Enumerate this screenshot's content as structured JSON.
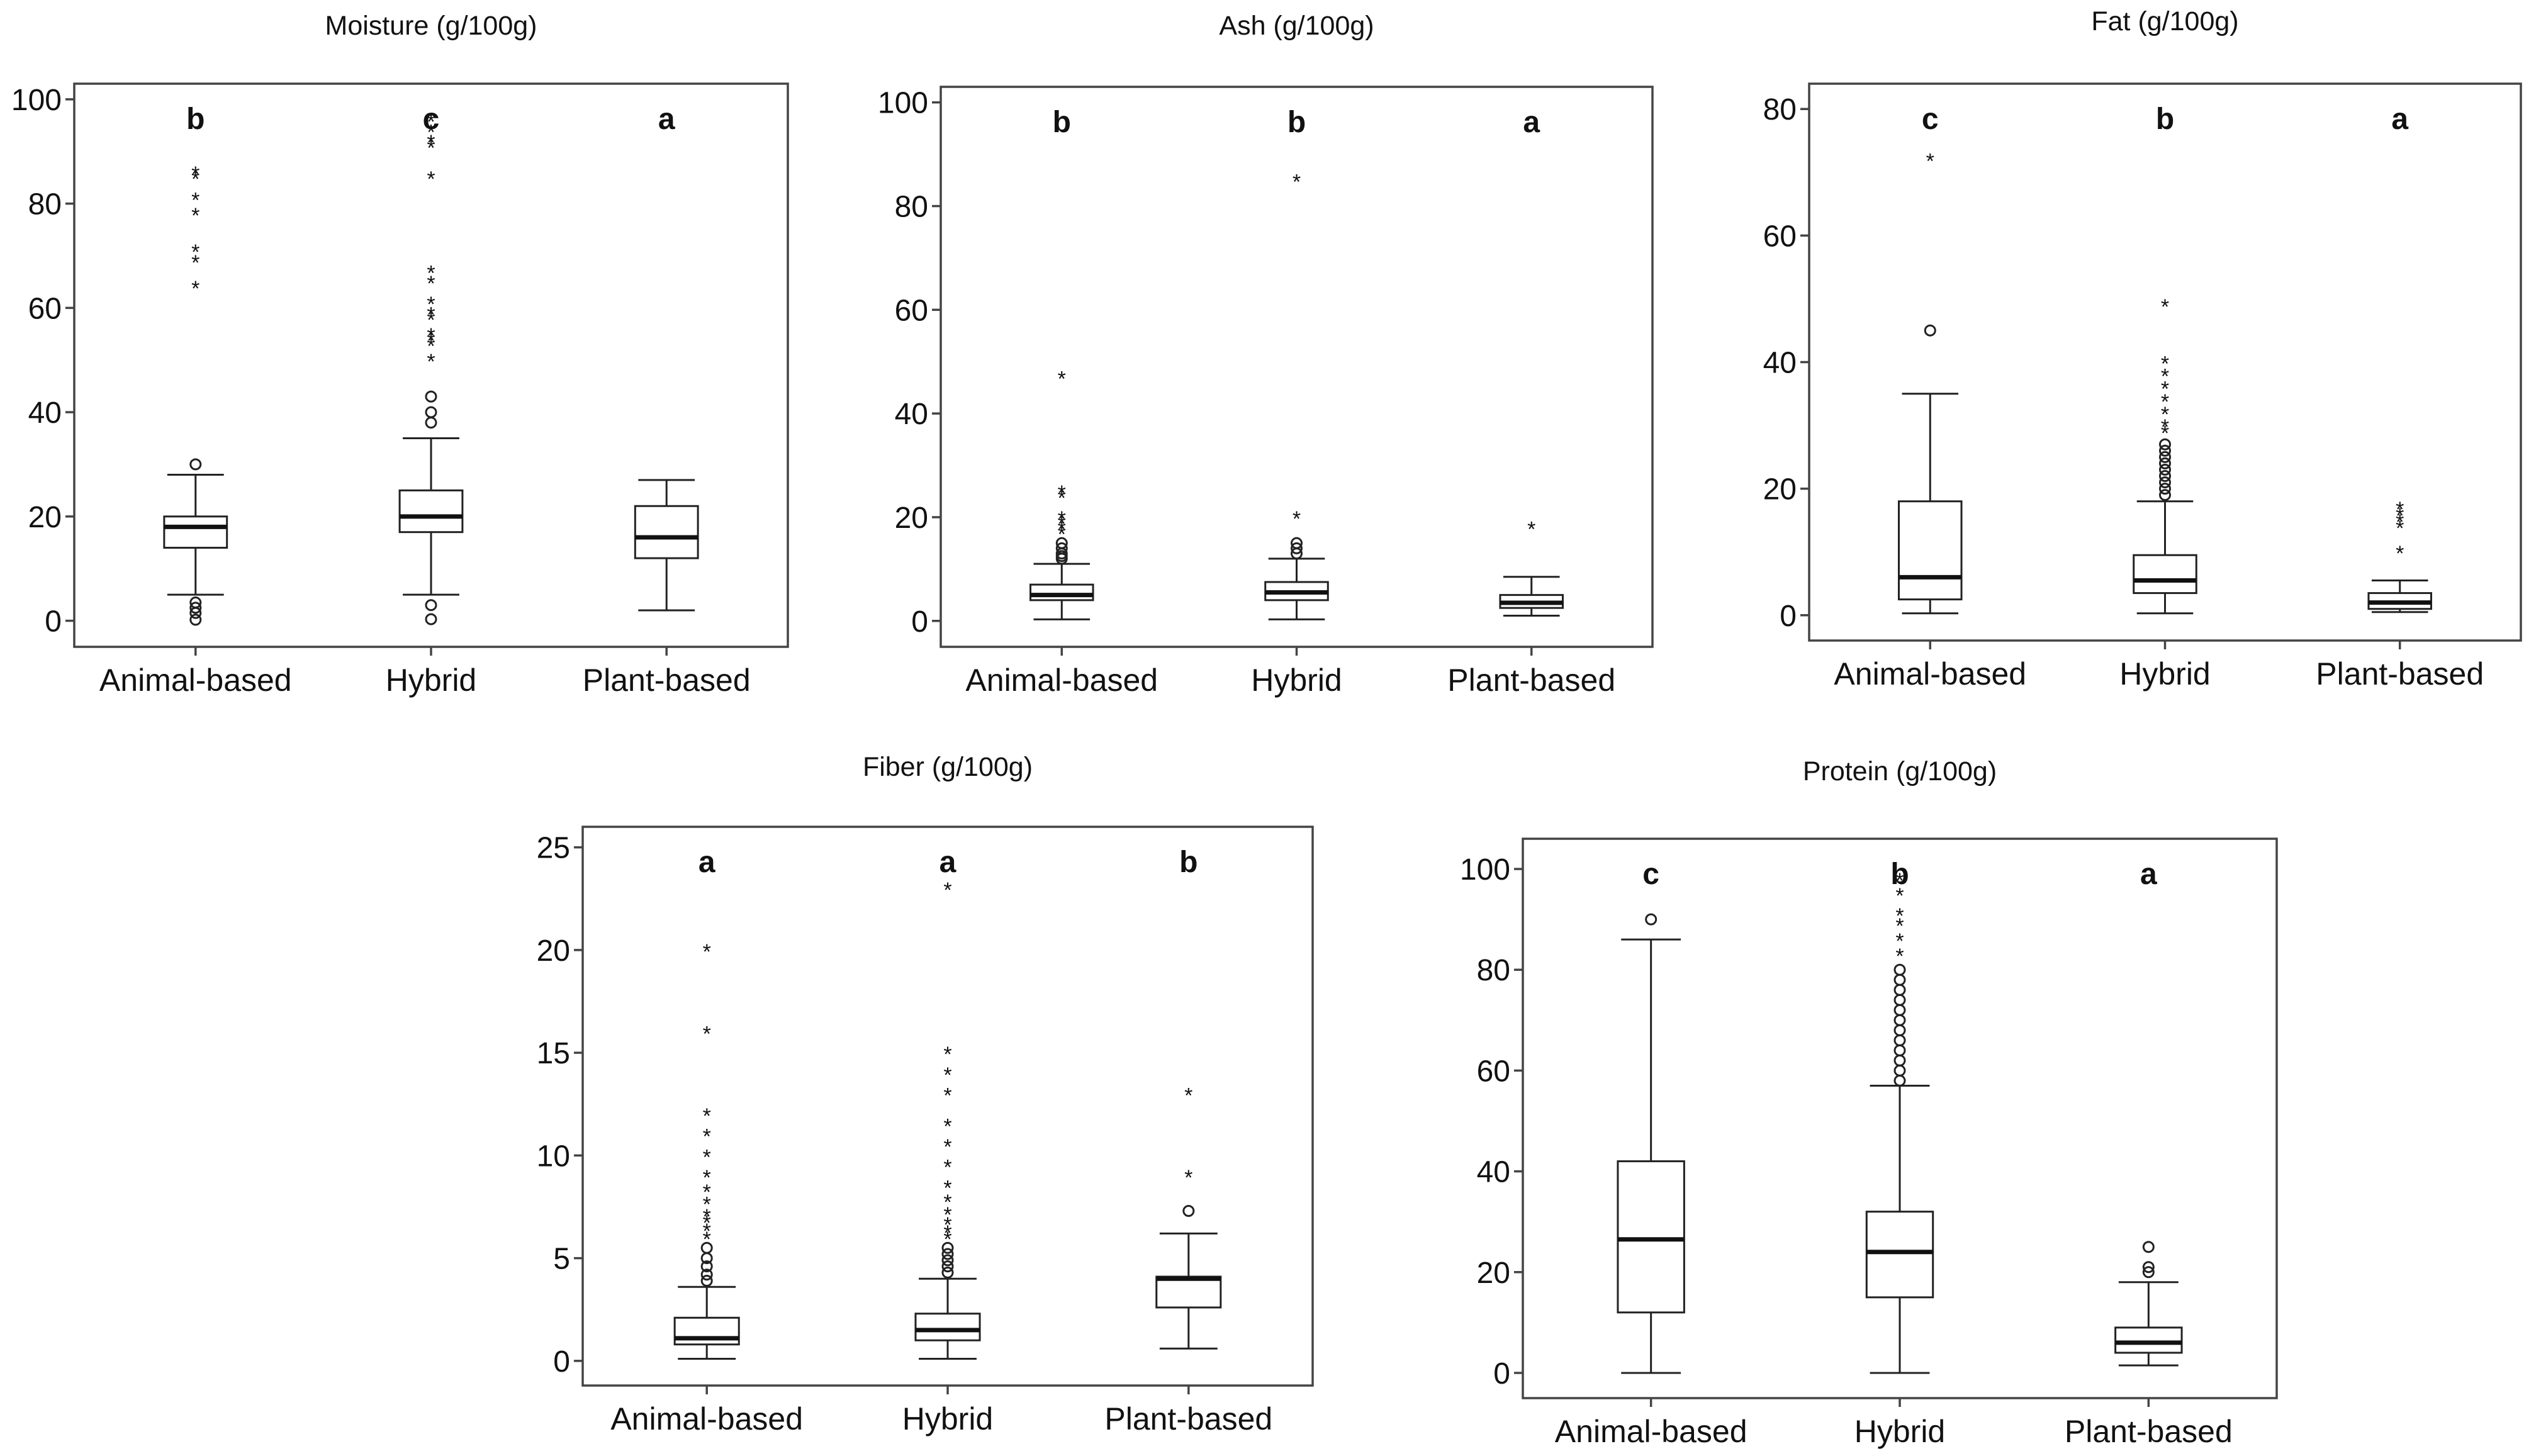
{
  "chart_data": [
    {
      "type": "box",
      "title": "Moisture (g/100g)",
      "categories": [
        "Animal-based",
        "Hybrid",
        "Plant-based"
      ],
      "ylim": [
        -5,
        103
      ],
      "yticks": [
        0,
        20,
        40,
        60,
        80,
        100
      ],
      "letters": [
        "b",
        "c",
        "a"
      ],
      "boxes": [
        {
          "whisker_low": 5,
          "q1": 14,
          "median": 18,
          "q3": 20,
          "whisker_high": 28,
          "mild_outliers": [
            30,
            3.5,
            2.5,
            1.5,
            0.2
          ],
          "extreme_outliers": [
            86,
            85,
            81,
            78,
            71,
            69,
            64
          ]
        },
        {
          "whisker_low": 5,
          "q1": 17,
          "median": 20,
          "q3": 25,
          "whisker_high": 35,
          "mild_outliers": [
            43,
            40,
            38,
            3,
            0.3
          ],
          "extreme_outliers": [
            96,
            94,
            92,
            91,
            85,
            67,
            65,
            61,
            59,
            58,
            55,
            54,
            53,
            50
          ]
        },
        {
          "whisker_low": 2,
          "q1": 12,
          "median": 16,
          "q3": 22,
          "whisker_high": 27,
          "mild_outliers": [],
          "extreme_outliers": []
        }
      ]
    },
    {
      "type": "box",
      "title": "Ash (g/100g)",
      "categories": [
        "Animal-based",
        "Hybrid",
        "Plant-based"
      ],
      "ylim": [
        -5,
        103
      ],
      "yticks": [
        0,
        20,
        40,
        60,
        80,
        100
      ],
      "letters": [
        "b",
        "b",
        "a"
      ],
      "boxes": [
        {
          "whisker_low": 0.3,
          "q1": 4,
          "median": 5,
          "q3": 7,
          "whisker_high": 11,
          "mild_outliers": [
            12,
            12.5,
            13,
            14,
            15
          ],
          "extreme_outliers": [
            47,
            25,
            24,
            20,
            19,
            18,
            17
          ]
        },
        {
          "whisker_low": 0.3,
          "q1": 4,
          "median": 5.5,
          "q3": 7.5,
          "whisker_high": 12,
          "mild_outliers": [
            13,
            14,
            15
          ],
          "extreme_outliers": [
            85,
            20
          ]
        },
        {
          "whisker_low": 1,
          "q1": 2.5,
          "median": 3.5,
          "q3": 5,
          "whisker_high": 8.5,
          "mild_outliers": [],
          "extreme_outliers": [
            18
          ]
        }
      ]
    },
    {
      "type": "box",
      "title": "Fat (g/100g)",
      "categories": [
        "Animal-based",
        "Hybrid",
        "Plant-based"
      ],
      "ylim": [
        -4,
        84
      ],
      "yticks": [
        0,
        20,
        40,
        60,
        80
      ],
      "letters": [
        "c",
        "b",
        "a"
      ],
      "boxes": [
        {
          "whisker_low": 0.3,
          "q1": 2.5,
          "median": 6,
          "q3": 18,
          "whisker_high": 35,
          "mild_outliers": [
            45
          ],
          "extreme_outliers": [
            72
          ]
        },
        {
          "whisker_low": 0.3,
          "q1": 3.5,
          "median": 5.5,
          "q3": 9.5,
          "whisker_high": 18,
          "mild_outliers": [
            19,
            20,
            21,
            22,
            23,
            24,
            25,
            26,
            27
          ],
          "extreme_outliers": [
            49,
            40,
            38,
            36,
            34,
            32,
            30,
            29
          ]
        },
        {
          "whisker_low": 0.5,
          "q1": 1,
          "median": 2,
          "q3": 3.5,
          "whisker_high": 5.5,
          "mild_outliers": [],
          "extreme_outliers": [
            17,
            16,
            15,
            14,
            10
          ]
        }
      ]
    },
    {
      "type": "box",
      "title": "Fiber (g/100g)",
      "categories": [
        "Animal-based",
        "Hybrid",
        "Plant-based"
      ],
      "ylim": [
        -1.2,
        26
      ],
      "yticks": [
        0,
        5,
        10,
        15,
        20,
        25
      ],
      "letters": [
        "a",
        "a",
        "b"
      ],
      "boxes": [
        {
          "whisker_low": 0.1,
          "q1": 0.8,
          "median": 1.1,
          "q3": 2.1,
          "whisker_high": 3.6,
          "mild_outliers": [
            3.9,
            4.2,
            4.6,
            5,
            5.5
          ],
          "extreme_outliers": [
            20,
            16,
            12,
            11,
            10,
            9,
            8.3,
            7.7,
            7.1,
            6.8,
            6.4,
            6
          ]
        },
        {
          "whisker_low": 0.1,
          "q1": 1,
          "median": 1.5,
          "q3": 2.3,
          "whisker_high": 4,
          "mild_outliers": [
            4.3,
            4.6,
            4.9,
            5.2,
            5.5
          ],
          "extreme_outliers": [
            23,
            15,
            14,
            13,
            11.5,
            10.5,
            9.5,
            8.5,
            7.8,
            7.2,
            6.7,
            6.3,
            6
          ]
        },
        {
          "whisker_low": 0.6,
          "q1": 2.6,
          "median": 4,
          "q3": 4.1,
          "whisker_high": 6.2,
          "mild_outliers": [
            7.3
          ],
          "extreme_outliers": [
            13,
            9
          ]
        }
      ]
    },
    {
      "type": "box",
      "title": "Protein (g/100g)",
      "categories": [
        "Animal-based",
        "Hybrid",
        "Plant-based"
      ],
      "ylim": [
        -5,
        106
      ],
      "yticks": [
        0,
        20,
        40,
        60,
        80,
        100
      ],
      "letters": [
        "c",
        "b",
        "a"
      ],
      "boxes": [
        {
          "whisker_low": 0,
          "q1": 12,
          "median": 26.5,
          "q3": 42,
          "whisker_high": 86,
          "mild_outliers": [
            90
          ],
          "extreme_outliers": []
        },
        {
          "whisker_low": 0,
          "q1": 15,
          "median": 24,
          "q3": 32,
          "whisker_high": 57,
          "mild_outliers": [
            58,
            60,
            62,
            64,
            66,
            68,
            70,
            72,
            74,
            76,
            78,
            80
          ],
          "extreme_outliers": [
            98,
            95,
            91,
            89,
            86,
            83
          ]
        },
        {
          "whisker_low": 1.5,
          "q1": 4,
          "median": 6,
          "q3": 9,
          "whisker_high": 18,
          "mild_outliers": [
            25,
            21,
            20
          ],
          "extreme_outliers": []
        }
      ]
    }
  ]
}
